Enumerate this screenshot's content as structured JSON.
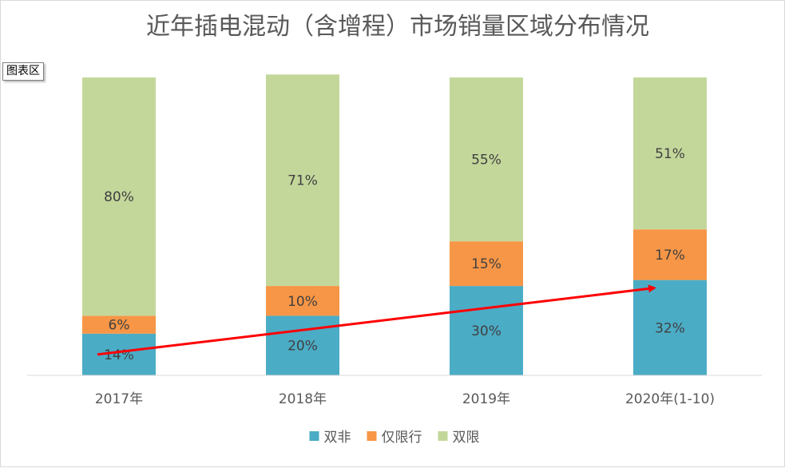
{
  "chart_data": {
    "type": "bar",
    "stacked": true,
    "title": "近年插电混动（含增程）市场销量区域分布情况",
    "categories": [
      "2017年",
      "2018年",
      "2019年",
      "2020年(1-10)"
    ],
    "series": [
      {
        "name": "双非",
        "values": [
          14,
          20,
          30,
          32
        ],
        "labels": [
          "14%",
          "20%",
          "30%",
          "32%"
        ],
        "color": "#4bacc6"
      },
      {
        "name": "仅限行",
        "values": [
          6,
          10,
          15,
          17
        ],
        "labels": [
          "6%",
          "10%",
          "15%",
          "17%"
        ],
        "color": "#f79646"
      },
      {
        "name": "双限",
        "values": [
          80,
          71,
          55,
          51
        ],
        "labels": [
          "80%",
          "71%",
          "55%",
          "51%"
        ],
        "color": "#c4d79b"
      }
    ],
    "ylim": [
      0,
      100
    ],
    "grid": false,
    "legend": "bottom",
    "annotation": {
      "type": "trend-arrow",
      "color": "#ff0000"
    }
  },
  "tooltip_label": "图表区"
}
